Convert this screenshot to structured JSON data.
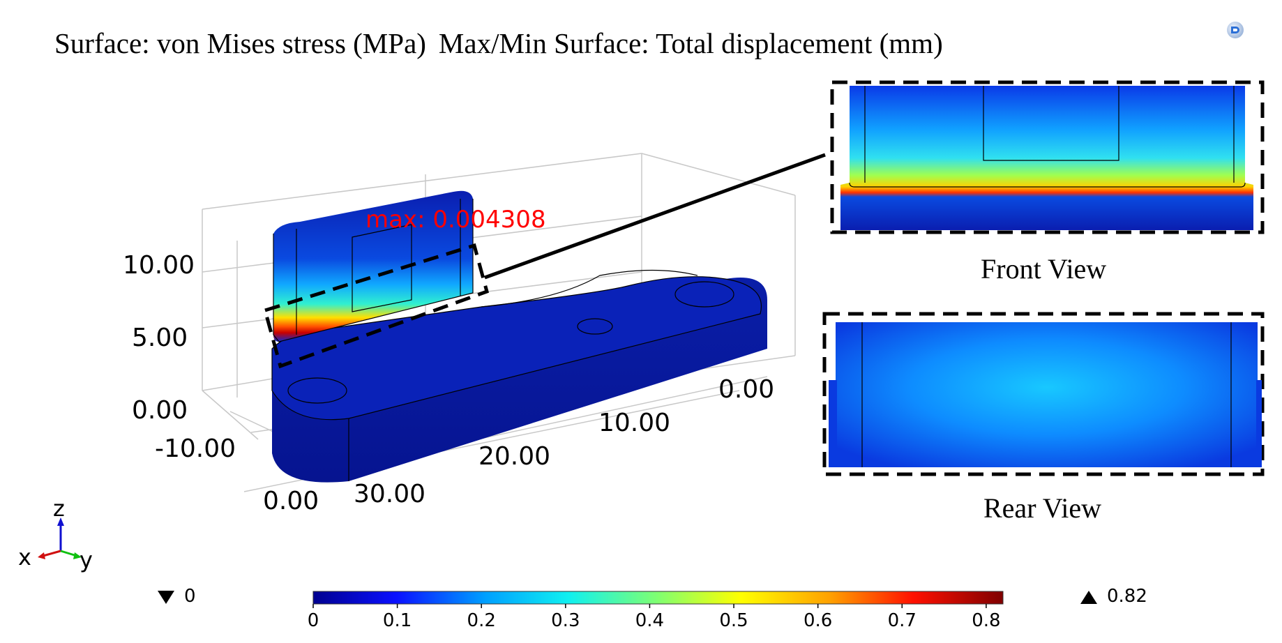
{
  "title": {
    "part1": "Surface: von Mises stress (MPa)",
    "part2": "Max/Min Surface: Total displacement (mm)"
  },
  "logo_icon": "comsol-logo-icon",
  "max_annotation": "max: 0.004308",
  "axes": {
    "z_ticks": [
      "10.00",
      "5.00",
      "0.00"
    ],
    "x_ticks": [
      "-10.00",
      "0.00"
    ],
    "y_ticks": [
      "0.00",
      "10.00",
      "20.00",
      "30.00"
    ]
  },
  "views": {
    "front_caption": "Front View",
    "rear_caption": "Rear View"
  },
  "triad": {
    "z": "z",
    "x": "x",
    "y": "y"
  },
  "colorbar": {
    "min_label": "0",
    "max_label": "0.82",
    "ticks": [
      "0",
      "0.1",
      "0.2",
      "0.3",
      "0.4",
      "0.5",
      "0.6",
      "0.7",
      "0.8"
    ],
    "tick_values": [
      0,
      0.1,
      0.2,
      0.3,
      0.4,
      0.5,
      0.6,
      0.7,
      0.8
    ],
    "range": [
      0,
      0.82
    ],
    "colormap": "rainbow",
    "stops": [
      "#00008f",
      "#0a10ff",
      "#00a0ff",
      "#10f0f0",
      "#80ff70",
      "#ffff00",
      "#ffa000",
      "#ff1000",
      "#7f0000"
    ]
  },
  "colors": {
    "low": "#0a1aa8",
    "mid": "#18c8ff",
    "high": "#e01010",
    "annotation": "#ff0000"
  }
}
